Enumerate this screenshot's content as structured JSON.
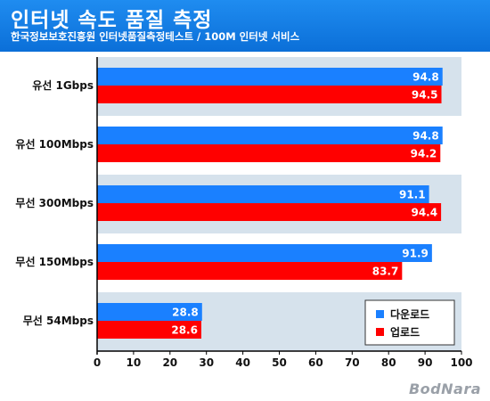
{
  "header": {
    "title": "인터넷 속도 품질 측정",
    "subtitle": "한국정보보호진흥원 인터넷품질측정테스트 / 100M 인터넷 서비스"
  },
  "watermark": "BodNara",
  "colors": {
    "header_bg": "#1a80e6",
    "download": "#1a80ff",
    "upload": "#ff0000",
    "band": "#d6e2ec"
  },
  "chart_data": {
    "type": "bar",
    "orientation": "horizontal",
    "categories": [
      "유선 1Gbps",
      "유선 100Mbps",
      "무선 300Mbps",
      "무선 150Mbps",
      "무선 54Mbps"
    ],
    "series": [
      {
        "name": "다운로드",
        "values": [
          94.8,
          94.8,
          91.1,
          91.9,
          28.8
        ]
      },
      {
        "name": "업로드",
        "values": [
          94.5,
          94.2,
          94.4,
          83.7,
          28.6
        ]
      }
    ],
    "xlim": [
      0,
      100
    ],
    "xticks": [
      0,
      10,
      20,
      30,
      40,
      50,
      60,
      70,
      80,
      90,
      100
    ],
    "legend_position": "bottom-right",
    "data_labels": true
  }
}
